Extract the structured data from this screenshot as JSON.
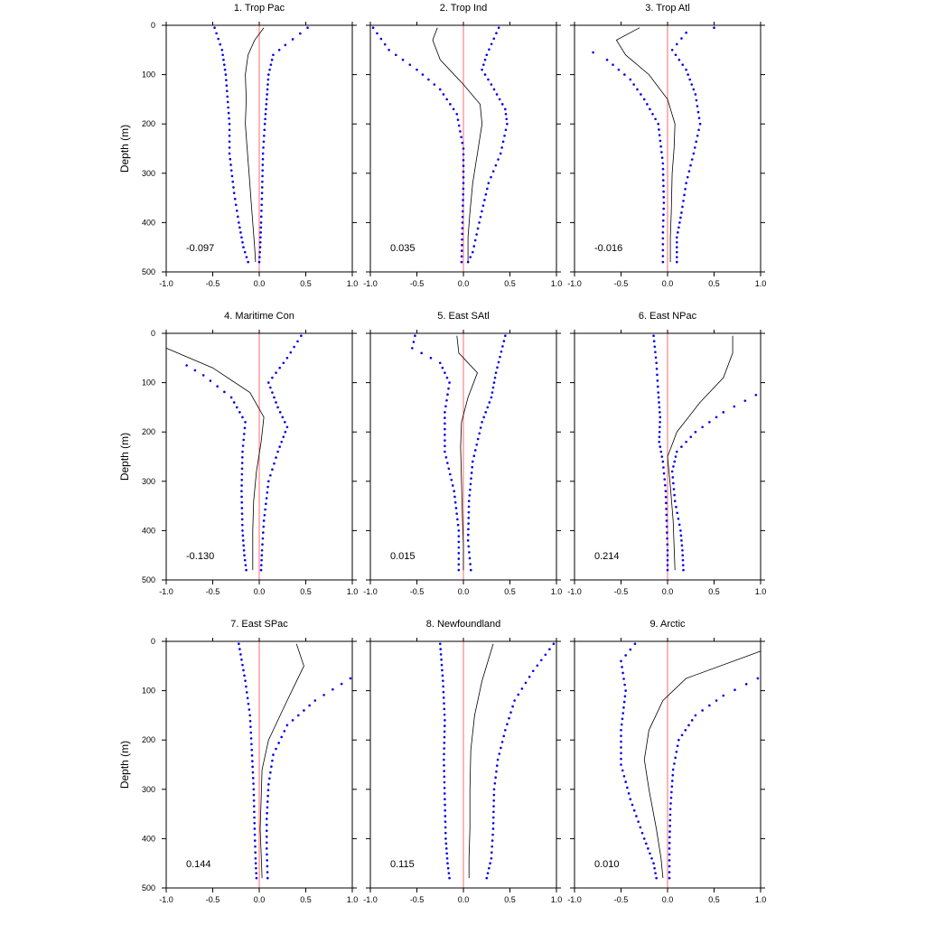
{
  "chart_data": {
    "type": "line",
    "xlim": [
      -1.0,
      1.0
    ],
    "ylim": [
      500,
      0
    ],
    "ylabel": "Depth (m)",
    "x_ticks": [
      -1.0,
      -0.5,
      0.0,
      0.5,
      1.0
    ],
    "x_tick_labels": [
      "-1.0",
      "-0.5",
      "0.0",
      "0.5",
      "1.0"
    ],
    "y_ticks": [
      0,
      100,
      200,
      300,
      400,
      500
    ],
    "y_tick_labels": [
      "0",
      "100",
      "200",
      "300",
      "400",
      "500"
    ],
    "colors": {
      "zero_line": "#ff6b6b",
      "spread_dots": "#0000ee",
      "mean_line": "#000000"
    },
    "panels": [
      {
        "title": "1. Trop Pac",
        "value_label": "-0.097",
        "mean": [
          [
            0.05,
            5
          ],
          [
            -0.05,
            30
          ],
          [
            -0.12,
            60
          ],
          [
            -0.15,
            100
          ],
          [
            -0.14,
            150
          ],
          [
            -0.15,
            200
          ],
          [
            -0.13,
            250
          ],
          [
            -0.11,
            300
          ],
          [
            -0.09,
            350
          ],
          [
            -0.07,
            400
          ],
          [
            -0.05,
            450
          ],
          [
            -0.04,
            480
          ]
        ],
        "lower": [
          [
            -0.48,
            5
          ],
          [
            -0.4,
            50
          ],
          [
            -0.36,
            100
          ],
          [
            -0.32,
            200
          ],
          [
            -0.32,
            260
          ],
          [
            -0.27,
            340
          ],
          [
            -0.22,
            400
          ],
          [
            -0.17,
            450
          ],
          [
            -0.12,
            480
          ]
        ],
        "upper": [
          [
            0.52,
            5
          ],
          [
            0.28,
            40
          ],
          [
            0.15,
            60
          ],
          [
            0.1,
            100
          ],
          [
            0.08,
            150
          ],
          [
            0.06,
            200
          ],
          [
            0.04,
            260
          ],
          [
            0.03,
            340
          ],
          [
            0.02,
            400
          ],
          [
            0.01,
            450
          ],
          [
            0.0,
            480
          ]
        ]
      },
      {
        "title": "2. Trop Ind",
        "value_label": "0.035",
        "mean": [
          [
            -0.28,
            5
          ],
          [
            -0.33,
            30
          ],
          [
            -0.25,
            70
          ],
          [
            0.0,
            120
          ],
          [
            0.18,
            160
          ],
          [
            0.2,
            200
          ],
          [
            0.15,
            260
          ],
          [
            0.1,
            320
          ],
          [
            0.07,
            380
          ],
          [
            0.05,
            430
          ],
          [
            0.05,
            480
          ]
        ],
        "lower": [
          [
            -0.97,
            5
          ],
          [
            -0.8,
            50
          ],
          [
            -0.5,
            90
          ],
          [
            -0.25,
            130
          ],
          [
            -0.07,
            180
          ],
          [
            0.0,
            250
          ],
          [
            0.0,
            320
          ],
          [
            -0.01,
            400
          ],
          [
            -0.02,
            480
          ]
        ],
        "upper": [
          [
            0.38,
            5
          ],
          [
            0.25,
            60
          ],
          [
            0.2,
            90
          ],
          [
            0.3,
            120
          ],
          [
            0.45,
            170
          ],
          [
            0.47,
            200
          ],
          [
            0.4,
            260
          ],
          [
            0.27,
            320
          ],
          [
            0.17,
            400
          ],
          [
            0.1,
            460
          ],
          [
            0.05,
            480
          ]
        ]
      },
      {
        "title": "3. Trop Atl",
        "value_label": "-0.016",
        "mean": [
          [
            -0.3,
            5
          ],
          [
            -0.55,
            30
          ],
          [
            -0.45,
            60
          ],
          [
            -0.2,
            100
          ],
          [
            0.0,
            150
          ],
          [
            0.08,
            200
          ],
          [
            0.07,
            250
          ],
          [
            0.05,
            300
          ],
          [
            0.04,
            380
          ],
          [
            0.03,
            430
          ],
          [
            0.03,
            480
          ]
        ],
        "lower": [
          [
            -0.8,
            55
          ],
          [
            -0.65,
            70
          ],
          [
            -0.4,
            110
          ],
          [
            -0.25,
            150
          ],
          [
            -0.1,
            200
          ],
          [
            -0.05,
            280
          ],
          [
            -0.04,
            360
          ],
          [
            -0.05,
            420
          ],
          [
            -0.05,
            480
          ]
        ],
        "upper": [
          [
            0.5,
            5
          ],
          [
            0.2,
            15
          ],
          [
            0.05,
            50
          ],
          [
            0.2,
            90
          ],
          [
            0.3,
            140
          ],
          [
            0.35,
            200
          ],
          [
            0.28,
            260
          ],
          [
            0.2,
            320
          ],
          [
            0.15,
            380
          ],
          [
            0.1,
            430
          ],
          [
            0.1,
            480
          ]
        ]
      },
      {
        "title": "4. Maritime Con",
        "value_label": "-0.130",
        "mean": [
          [
            -1.0,
            30
          ],
          [
            -0.5,
            70
          ],
          [
            -0.1,
            120
          ],
          [
            0.05,
            170
          ],
          [
            0.02,
            220
          ],
          [
            -0.03,
            280
          ],
          [
            -0.06,
            340
          ],
          [
            -0.07,
            400
          ],
          [
            -0.07,
            450
          ],
          [
            -0.07,
            480
          ]
        ],
        "lower": [
          [
            -0.78,
            65
          ],
          [
            -0.6,
            85
          ],
          [
            -0.3,
            130
          ],
          [
            -0.15,
            180
          ],
          [
            -0.18,
            240
          ],
          [
            -0.19,
            320
          ],
          [
            -0.18,
            400
          ],
          [
            -0.16,
            450
          ],
          [
            -0.14,
            480
          ]
        ],
        "upper": [
          [
            0.45,
            5
          ],
          [
            0.3,
            50
          ],
          [
            0.1,
            100
          ],
          [
            0.2,
            150
          ],
          [
            0.3,
            190
          ],
          [
            0.2,
            240
          ],
          [
            0.1,
            300
          ],
          [
            0.05,
            380
          ],
          [
            0.03,
            440
          ],
          [
            0.02,
            480
          ]
        ]
      },
      {
        "title": "5. East SAtl",
        "value_label": "0.015",
        "mean": [
          [
            -0.07,
            5
          ],
          [
            -0.05,
            40
          ],
          [
            0.15,
            80
          ],
          [
            0.05,
            130
          ],
          [
            -0.02,
            180
          ],
          [
            -0.03,
            230
          ],
          [
            -0.02,
            300
          ],
          [
            -0.01,
            380
          ],
          [
            0.0,
            430
          ],
          [
            0.0,
            480
          ]
        ],
        "lower": [
          [
            -0.52,
            5
          ],
          [
            -0.55,
            30
          ],
          [
            -0.25,
            60
          ],
          [
            -0.15,
            100
          ],
          [
            -0.2,
            160
          ],
          [
            -0.2,
            240
          ],
          [
            -0.1,
            320
          ],
          [
            -0.05,
            400
          ],
          [
            -0.05,
            480
          ]
        ],
        "upper": [
          [
            0.45,
            5
          ],
          [
            0.35,
            80
          ],
          [
            0.3,
            130
          ],
          [
            0.2,
            180
          ],
          [
            0.1,
            260
          ],
          [
            0.06,
            340
          ],
          [
            0.05,
            420
          ],
          [
            0.08,
            480
          ]
        ]
      },
      {
        "title": "6. East NPac",
        "value_label": "0.214",
        "mean": [
          [
            0.7,
            5
          ],
          [
            0.7,
            40
          ],
          [
            0.6,
            90
          ],
          [
            0.35,
            140
          ],
          [
            0.1,
            200
          ],
          [
            0.0,
            250
          ],
          [
            0.03,
            310
          ],
          [
            0.06,
            380
          ],
          [
            0.07,
            430
          ],
          [
            0.08,
            480
          ]
        ],
        "lower": [
          [
            -0.15,
            5
          ],
          [
            -0.12,
            60
          ],
          [
            -0.1,
            120
          ],
          [
            -0.08,
            170
          ],
          [
            -0.09,
            220
          ],
          [
            -0.05,
            260
          ],
          [
            -0.02,
            320
          ],
          [
            -0.01,
            380
          ],
          [
            0.0,
            440
          ],
          [
            0.0,
            480
          ]
        ],
        "upper": [
          [
            0.95,
            125
          ],
          [
            0.6,
            160
          ],
          [
            0.3,
            200
          ],
          [
            0.1,
            240
          ],
          [
            0.05,
            280
          ],
          [
            0.08,
            340
          ],
          [
            0.14,
            400
          ],
          [
            0.16,
            440
          ],
          [
            0.17,
            480
          ]
        ]
      },
      {
        "title": "7. East SPac",
        "value_label": "0.144",
        "mean": [
          [
            0.4,
            5
          ],
          [
            0.48,
            50
          ],
          [
            0.3,
            120
          ],
          [
            0.1,
            200
          ],
          [
            0.03,
            260
          ],
          [
            0.02,
            320
          ],
          [
            0.01,
            380
          ],
          [
            0.02,
            430
          ],
          [
            0.03,
            480
          ]
        ],
        "lower": [
          [
            -0.22,
            5
          ],
          [
            -0.15,
            80
          ],
          [
            -0.1,
            150
          ],
          [
            -0.08,
            220
          ],
          [
            -0.06,
            300
          ],
          [
            -0.05,
            380
          ],
          [
            -0.04,
            440
          ],
          [
            -0.03,
            480
          ]
        ],
        "upper": [
          [
            0.98,
            75
          ],
          [
            0.6,
            120
          ],
          [
            0.3,
            170
          ],
          [
            0.15,
            230
          ],
          [
            0.1,
            290
          ],
          [
            0.08,
            360
          ],
          [
            0.08,
            420
          ],
          [
            0.09,
            480
          ]
        ]
      },
      {
        "title": "8. Newfoundland",
        "value_label": "0.115",
        "mean": [
          [
            0.32,
            5
          ],
          [
            0.2,
            80
          ],
          [
            0.12,
            150
          ],
          [
            0.08,
            220
          ],
          [
            0.07,
            300
          ],
          [
            0.07,
            380
          ],
          [
            0.06,
            440
          ],
          [
            0.06,
            480
          ]
        ],
        "lower": [
          [
            -0.25,
            5
          ],
          [
            -0.22,
            80
          ],
          [
            -0.2,
            160
          ],
          [
            -0.21,
            240
          ],
          [
            -0.2,
            320
          ],
          [
            -0.19,
            400
          ],
          [
            -0.17,
            450
          ],
          [
            -0.15,
            480
          ]
        ],
        "upper": [
          [
            0.97,
            5
          ],
          [
            0.75,
            60
          ],
          [
            0.55,
            120
          ],
          [
            0.45,
            180
          ],
          [
            0.37,
            240
          ],
          [
            0.33,
            300
          ],
          [
            0.32,
            380
          ],
          [
            0.3,
            440
          ],
          [
            0.25,
            480
          ]
        ]
      },
      {
        "title": "9. Arctic",
        "value_label": "0.010",
        "mean": [
          [
            1.0,
            20
          ],
          [
            0.2,
            75
          ],
          [
            -0.05,
            120
          ],
          [
            -0.2,
            180
          ],
          [
            -0.25,
            240
          ],
          [
            -0.2,
            300
          ],
          [
            -0.12,
            380
          ],
          [
            -0.07,
            440
          ],
          [
            -0.05,
            480
          ]
        ],
        "lower": [
          [
            -0.35,
            5
          ],
          [
            -0.5,
            40
          ],
          [
            -0.45,
            100
          ],
          [
            -0.5,
            180
          ],
          [
            -0.5,
            250
          ],
          [
            -0.4,
            320
          ],
          [
            -0.25,
            400
          ],
          [
            -0.15,
            450
          ],
          [
            -0.12,
            480
          ]
        ],
        "upper": [
          [
            0.97,
            75
          ],
          [
            0.6,
            110
          ],
          [
            0.3,
            150
          ],
          [
            0.12,
            200
          ],
          [
            0.06,
            260
          ],
          [
            0.03,
            340
          ],
          [
            0.02,
            420
          ],
          [
            0.02,
            480
          ]
        ]
      }
    ]
  }
}
